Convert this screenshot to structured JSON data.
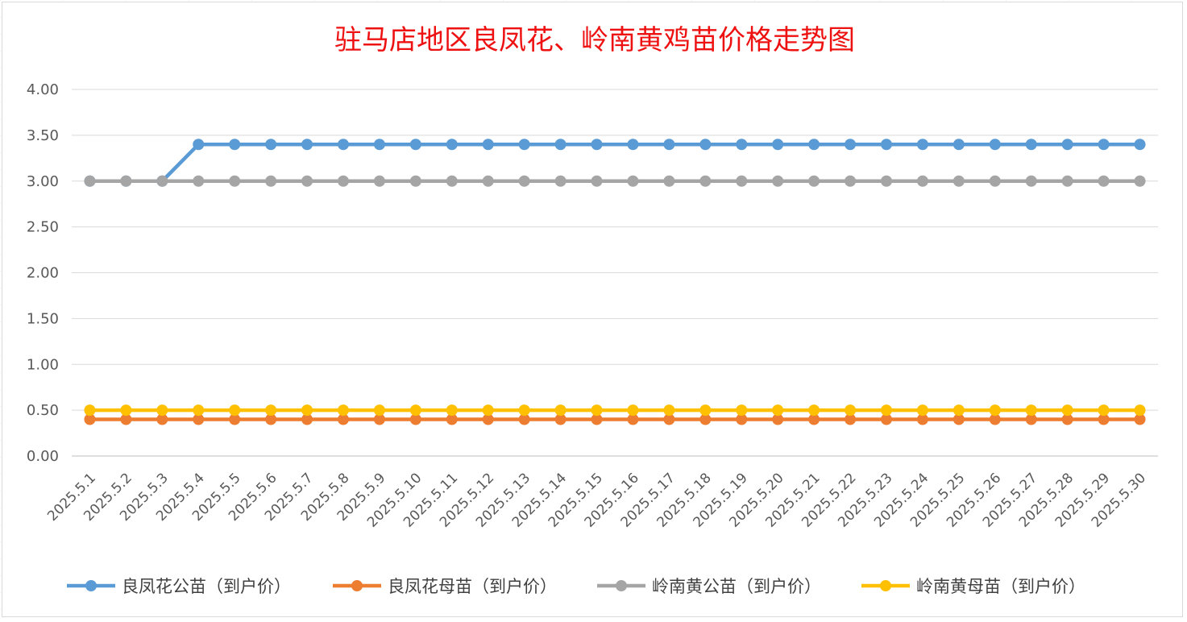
{
  "chart_data": {
    "type": "line",
    "title": "驻马店地区良凤花、岭南黄鸡苗价格走势图",
    "xlabel": "",
    "ylabel": "",
    "ylim": [
      0,
      4
    ],
    "yticks": [
      "0.00",
      "0.50",
      "1.00",
      "1.50",
      "2.00",
      "2.50",
      "3.00",
      "3.50",
      "4.00"
    ],
    "grid": true,
    "legend_position": "bottom",
    "categories": [
      "2025.5.1",
      "2025.5.2",
      "2025.5.3",
      "2025.5.4",
      "2025.5.5",
      "2025.5.6",
      "2025.5.7",
      "2025.5.8",
      "2025.5.9",
      "2025.5.10",
      "2025.5.11",
      "2025.5.12",
      "2025.5.13",
      "2025.5.14",
      "2025.5.15",
      "2025.5.16",
      "2025.5.17",
      "2025.5.18",
      "2025.5.19",
      "2025.5.20",
      "2025.5.21",
      "2025.5.22",
      "2025.5.23",
      "2025.5.24",
      "2025.5.25",
      "2025.5.26",
      "2025.5.27",
      "2025.5.28",
      "2025.5.29",
      "2025.5.30"
    ],
    "series": [
      {
        "name": "良凤花公苗（到户价）",
        "color": "#5b9bd5",
        "values": [
          3.0,
          3.0,
          3.0,
          3.4,
          3.4,
          3.4,
          3.4,
          3.4,
          3.4,
          3.4,
          3.4,
          3.4,
          3.4,
          3.4,
          3.4,
          3.4,
          3.4,
          3.4,
          3.4,
          3.4,
          3.4,
          3.4,
          3.4,
          3.4,
          3.4,
          3.4,
          3.4,
          3.4,
          3.4,
          3.4
        ]
      },
      {
        "name": "良凤花母苗（到户价）",
        "color": "#ed7d31",
        "values": [
          0.4,
          0.4,
          0.4,
          0.4,
          0.4,
          0.4,
          0.4,
          0.4,
          0.4,
          0.4,
          0.4,
          0.4,
          0.4,
          0.4,
          0.4,
          0.4,
          0.4,
          0.4,
          0.4,
          0.4,
          0.4,
          0.4,
          0.4,
          0.4,
          0.4,
          0.4,
          0.4,
          0.4,
          0.4,
          0.4
        ]
      },
      {
        "name": "岭南黄公苗（到户价）",
        "color": "#a5a5a5",
        "values": [
          3.0,
          3.0,
          3.0,
          3.0,
          3.0,
          3.0,
          3.0,
          3.0,
          3.0,
          3.0,
          3.0,
          3.0,
          3.0,
          3.0,
          3.0,
          3.0,
          3.0,
          3.0,
          3.0,
          3.0,
          3.0,
          3.0,
          3.0,
          3.0,
          3.0,
          3.0,
          3.0,
          3.0,
          3.0,
          3.0
        ]
      },
      {
        "name": "岭南黄母苗（到户价）",
        "color": "#ffc000",
        "values": [
          0.5,
          0.5,
          0.5,
          0.5,
          0.5,
          0.5,
          0.5,
          0.5,
          0.5,
          0.5,
          0.5,
          0.5,
          0.5,
          0.5,
          0.5,
          0.5,
          0.5,
          0.5,
          0.5,
          0.5,
          0.5,
          0.5,
          0.5,
          0.5,
          0.5,
          0.5,
          0.5,
          0.5,
          0.5,
          0.5
        ]
      }
    ]
  }
}
